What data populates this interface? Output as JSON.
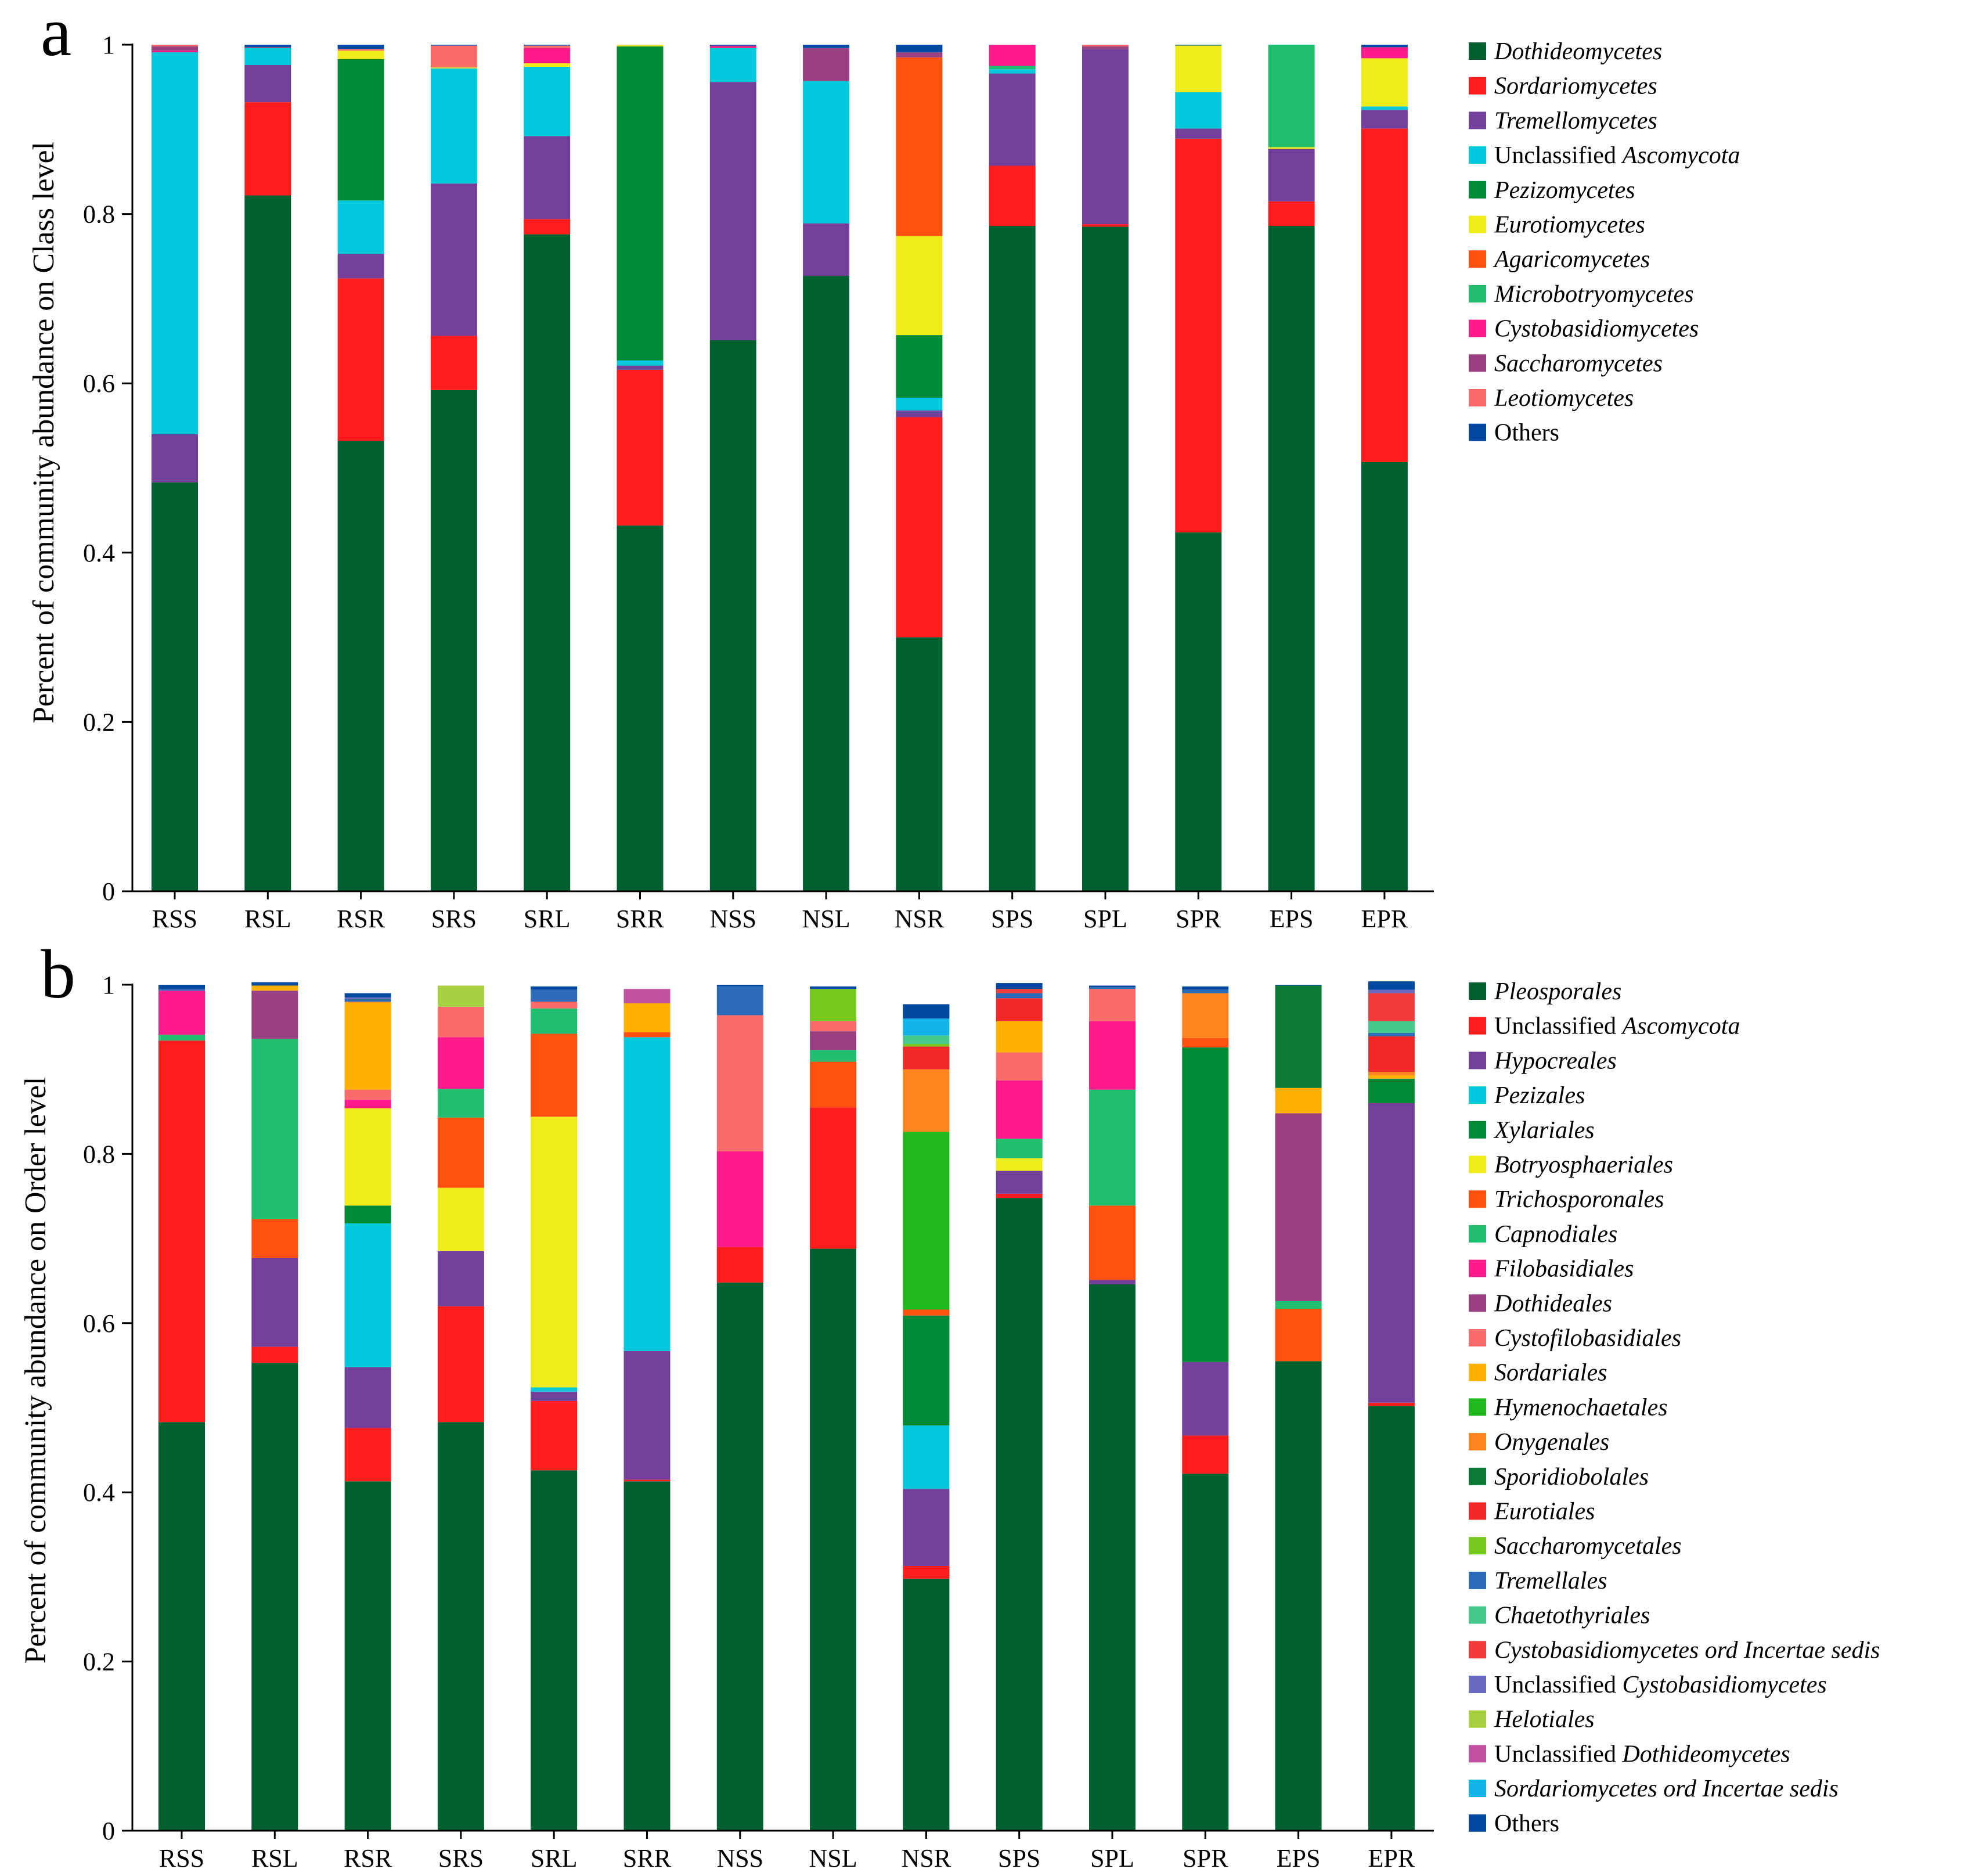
{
  "chart_data": [
    {
      "panel": "a",
      "type": "bar",
      "stacked": true,
      "ylabel": "Percent of community abundance on Class level",
      "ylim": [
        0,
        1
      ],
      "yticks": [
        "0",
        "0.2",
        "0.4",
        "0.6",
        "0.8",
        "1"
      ],
      "categories": [
        "RSS",
        "RSL",
        "RSR",
        "SRS",
        "SRL",
        "SRR",
        "NSS",
        "NSL",
        "NSR",
        "SPS",
        "SPL",
        "SPR",
        "EPS",
        "EPR"
      ],
      "legend_position": "right",
      "series": [
        {
          "name": "Dothideomycetes",
          "legend": [
            {
              "text": "Dothideomycetes",
              "italic": true
            }
          ],
          "color": "#006030",
          "values": [
            0.483,
            0.822,
            0.532,
            0.592,
            0.776,
            0.432,
            0.651,
            0.727,
            0.3,
            0.786,
            0.785,
            0.424,
            0.786,
            0.507
          ]
        },
        {
          "name": "Sordariomycetes",
          "legend": [
            {
              "text": "Sordariomycetes",
              "italic": true
            }
          ],
          "color": "#ff1c1c",
          "values": [
            0,
            0.11,
            0.192,
            0.064,
            0.018,
            0.184,
            0,
            0,
            0.26,
            0.071,
            0.003,
            0.465,
            0.029,
            0.394
          ]
        },
        {
          "name": "Tremellomycetes",
          "legend": [
            {
              "text": "Tremellomycetes",
              "italic": true
            }
          ],
          "color": "#72409a",
          "values": [
            0.057,
            0.044,
            0.029,
            0.18,
            0.098,
            0.005,
            0.305,
            0.062,
            0.008,
            0.109,
            0.207,
            0.012,
            0.062,
            0.022
          ]
        },
        {
          "name": "Unclassified Ascomycota",
          "legend": [
            {
              "text": "Unclassified ",
              "italic": false
            },
            {
              "text": "Ascomycota",
              "italic": true
            }
          ],
          "color": "#00c8dc",
          "values": [
            0.451,
            0.02,
            0.063,
            0.136,
            0.082,
            0.006,
            0.04,
            0.168,
            0.015,
            0.005,
            0,
            0.043,
            0,
            0.004
          ]
        },
        {
          "name": "Pezizomycetes",
          "legend": [
            {
              "text": "Pezizomycetes",
              "italic": true
            }
          ],
          "color": "#008a35",
          "values": [
            0,
            0,
            0.167,
            0,
            0,
            0.371,
            0,
            0,
            0.074,
            0,
            0,
            0,
            0,
            0
          ]
        },
        {
          "name": "Eurotiomycetes",
          "legend": [
            {
              "text": "Eurotiomycetes",
              "italic": true
            }
          ],
          "color": "#f0ec1c",
          "values": [
            0,
            0,
            0.01,
            0.001,
            0.004,
            0.002,
            0,
            0,
            0.117,
            0,
            0,
            0.055,
            0.002,
            0.057
          ]
        },
        {
          "name": "Agaricomycetes",
          "legend": [
            {
              "text": "Agaricomycetes",
              "italic": true
            }
          ],
          "color": "#ff5010",
          "values": [
            0,
            0,
            0,
            0,
            0,
            0,
            0,
            0,
            0.211,
            0,
            0,
            0,
            0,
            0
          ]
        },
        {
          "name": "Microbotryomycetes",
          "legend": [
            {
              "text": "Microbotryomycetes",
              "italic": true
            }
          ],
          "color": "#20be6e",
          "values": [
            0,
            0,
            0,
            0,
            0,
            0,
            0,
            0,
            0,
            0.004,
            0,
            0,
            0.121,
            0
          ]
        },
        {
          "name": "Cystobasidiomycetes",
          "legend": [
            {
              "text": "Cystobasidiomycetes",
              "italic": true
            }
          ],
          "color": "#ff1a8c",
          "values": [
            0.002,
            0,
            0,
            0,
            0.018,
            0,
            0.002,
            0,
            0,
            0.025,
            0,
            0,
            0,
            0.013
          ]
        },
        {
          "name": "Saccharomycetes",
          "legend": [
            {
              "text": "Saccharomycetes",
              "italic": true
            }
          ],
          "color": "#9a4080",
          "values": [
            0.005,
            0.001,
            0,
            0,
            0,
            0,
            0.001,
            0.039,
            0.006,
            0,
            0.003,
            0,
            0,
            0
          ]
        },
        {
          "name": "Leotiomycetes",
          "legend": [
            {
              "text": "Leotiomycetes",
              "italic": true
            }
          ],
          "color": "#fa6b6b",
          "values": [
            0.002,
            0,
            0.002,
            0.026,
            0.003,
            0,
            0,
            0,
            0,
            0,
            0.002,
            0,
            0,
            0
          ]
        },
        {
          "name": "Others",
          "legend": [
            {
              "text": "Others",
              "italic": false
            }
          ],
          "color": "#0048a0",
          "values": [
            0,
            0.003,
            0.005,
            0.001,
            0.001,
            0,
            0.001,
            0.004,
            0.009,
            0,
            0,
            0.001,
            0,
            0.003
          ]
        }
      ]
    },
    {
      "panel": "b",
      "type": "bar",
      "stacked": true,
      "ylabel": "Percent of community abundance on Order level",
      "ylim": [
        0,
        1
      ],
      "yticks": [
        "0",
        "0.2",
        "0.4",
        "0.6",
        "0.8",
        "1"
      ],
      "categories": [
        "RSS",
        "RSL",
        "RSR",
        "SRS",
        "SRL",
        "SRR",
        "NSS",
        "NSL",
        "NSR",
        "SPS",
        "SPL",
        "SPR",
        "EPS",
        "EPR"
      ],
      "legend_position": "right",
      "series": [
        {
          "name": "Pleosporales",
          "legend": [
            {
              "text": "Pleosporales",
              "italic": true
            }
          ],
          "color": "#006030",
          "values": [
            0.483,
            0.553,
            0.413,
            0.483,
            0.426,
            0.413,
            0.648,
            0.688,
            0.298,
            0.748,
            0.646,
            0.422,
            0.555,
            0.502
          ]
        },
        {
          "name": "Unclassified Ascomycota",
          "legend": [
            {
              "text": "Unclassified ",
              "italic": false
            },
            {
              "text": "Ascomycota",
              "italic": true
            }
          ],
          "color": "#ff1c1c",
          "values": [
            0.451,
            0.019,
            0.063,
            0.137,
            0.082,
            0.002,
            0.042,
            0.167,
            0.015,
            0.005,
            0,
            0.045,
            0,
            0.004
          ]
        },
        {
          "name": "Hypocreales",
          "legend": [
            {
              "text": "Hypocreales",
              "italic": true
            }
          ],
          "color": "#72409a",
          "values": [
            0,
            0.105,
            0.072,
            0.065,
            0.011,
            0.152,
            0,
            0,
            0.091,
            0.027,
            0.005,
            0.087,
            0,
            0.354
          ]
        },
        {
          "name": "Pezizales",
          "legend": [
            {
              "text": "Pezizales",
              "italic": true
            }
          ],
          "color": "#00c8dc",
          "values": [
            0,
            0,
            0.17,
            0,
            0.005,
            0.371,
            0,
            0,
            0.075,
            0,
            0,
            0,
            0,
            0
          ]
        },
        {
          "name": "Xylariales",
          "legend": [
            {
              "text": "Xylariales",
              "italic": true
            }
          ],
          "color": "#008a35",
          "values": [
            0,
            0,
            0.021,
            0,
            0,
            0,
            0,
            0,
            0.13,
            0,
            0,
            0.372,
            0,
            0.029
          ]
        },
        {
          "name": "Botryosphaeriales",
          "legend": [
            {
              "text": "Botryosphaeriales",
              "italic": true
            }
          ],
          "color": "#f0ec1c",
          "values": [
            0,
            0,
            0.115,
            0.075,
            0.32,
            0,
            0,
            0,
            0,
            0.015,
            0,
            0,
            0,
            0
          ]
        },
        {
          "name": "Trichosporonales",
          "legend": [
            {
              "text": "Trichosporonales",
              "italic": true
            }
          ],
          "color": "#ff5010",
          "values": [
            0,
            0.046,
            0,
            0.083,
            0.098,
            0.006,
            0,
            0.054,
            0.007,
            0,
            0.088,
            0.011,
            0.062,
            0
          ]
        },
        {
          "name": "Capnodiales",
          "legend": [
            {
              "text": "Capnodiales",
              "italic": true
            }
          ],
          "color": "#20be6e",
          "values": [
            0.007,
            0.213,
            0,
            0.034,
            0.03,
            0,
            0,
            0.014,
            0,
            0.023,
            0.137,
            0,
            0.009,
            0
          ]
        },
        {
          "name": "Filobasidiales",
          "legend": [
            {
              "text": "Filobasidiales",
              "italic": true
            }
          ],
          "color": "#ff1a8c",
          "values": [
            0.052,
            0,
            0.01,
            0.061,
            0,
            0,
            0.113,
            0,
            0,
            0.069,
            0.081,
            0,
            0,
            0
          ]
        },
        {
          "name": "Dothideales",
          "legend": [
            {
              "text": "Dothideales",
              "italic": true
            }
          ],
          "color": "#9a4080",
          "values": [
            0,
            0.057,
            0,
            0,
            0,
            0,
            0,
            0.022,
            0,
            0,
            0,
            0,
            0.222,
            0
          ]
        },
        {
          "name": "Cystofilobasidiales",
          "legend": [
            {
              "text": "Cystofilobasidiales",
              "italic": true
            }
          ],
          "color": "#fa6b6b",
          "values": [
            0,
            0,
            0.012,
            0.036,
            0.008,
            0,
            0.161,
            0.012,
            0,
            0.033,
            0.038,
            0,
            0,
            0
          ]
        },
        {
          "name": "Sordariales",
          "legend": [
            {
              "text": "Sordariales",
              "italic": true
            }
          ],
          "color": "#ffb000",
          "values": [
            0,
            0.006,
            0.103,
            0,
            0,
            0.034,
            0,
            0,
            0,
            0.037,
            0,
            0,
            0.03,
            0.004
          ]
        },
        {
          "name": "Hymenochaetales",
          "legend": [
            {
              "text": "Hymenochaetales",
              "italic": true
            }
          ],
          "color": "#20b81e",
          "values": [
            0,
            0,
            0,
            0,
            0,
            0,
            0,
            0,
            0.21,
            0,
            0,
            0,
            0,
            0
          ]
        },
        {
          "name": "Onygenales",
          "legend": [
            {
              "text": "Onygenales",
              "italic": true
            }
          ],
          "color": "#ff8420",
          "values": [
            0,
            0,
            0.001,
            0,
            0,
            0,
            0,
            0,
            0.074,
            0,
            0,
            0.053,
            0,
            0.004
          ]
        },
        {
          "name": "Sporidiobolales",
          "legend": [
            {
              "text": "Sporidiobolales",
              "italic": true
            }
          ],
          "color": "#0a7a35",
          "values": [
            0,
            0,
            0,
            0,
            0,
            0,
            0,
            0,
            0,
            0,
            0,
            0,
            0.121,
            0
          ]
        },
        {
          "name": "Eurotiales",
          "legend": [
            {
              "text": "Eurotiales",
              "italic": true
            }
          ],
          "color": "#f22828",
          "values": [
            0,
            0,
            0,
            0,
            0,
            0,
            0,
            0,
            0.027,
            0.027,
            0,
            0,
            0,
            0.042
          ]
        },
        {
          "name": "Saccharomycetales",
          "legend": [
            {
              "text": "Saccharomycetales",
              "italic": true
            }
          ],
          "color": "#74c81e",
          "values": [
            0,
            0,
            0,
            0,
            0,
            0,
            0,
            0.038,
            0.003,
            0,
            0,
            0,
            0,
            0
          ]
        },
        {
          "name": "Tremellales",
          "legend": [
            {
              "text": "Tremellales",
              "italic": true
            }
          ],
          "color": "#2a6ab8",
          "values": [
            0.002,
            0,
            0.003,
            0,
            0.014,
            0,
            0.034,
            0,
            0,
            0.006,
            0.002,
            0.004,
            0,
            0.004
          ]
        },
        {
          "name": "Chaetothyriales",
          "legend": [
            {
              "text": "Chaetothyriales",
              "italic": true
            }
          ],
          "color": "#46c88c",
          "values": [
            0,
            0,
            0,
            0,
            0,
            0,
            0,
            0,
            0.01,
            0,
            0,
            0,
            0,
            0.014
          ]
        },
        {
          "name": "Cystobasidiomycetes ord Incertae sedis",
          "legend": [
            {
              "text": "Cystobasidiomycetes ord Incertae sedis",
              "italic": true
            }
          ],
          "color": "#f23c3c",
          "values": [
            0,
            0,
            0,
            0,
            0,
            0,
            0,
            0,
            0,
            0.005,
            0,
            0,
            0,
            0.033
          ]
        },
        {
          "name": "Unclassified Cystobasidiomycetes",
          "legend": [
            {
              "text": "Unclassified ",
              "italic": false
            },
            {
              "text": "Cystobasidiomycetes",
              "italic": true
            }
          ],
          "color": "#6a6ac0",
          "values": [
            0,
            0,
            0.002,
            0,
            0,
            0,
            0,
            0,
            0,
            0,
            0,
            0,
            0,
            0.004
          ]
        },
        {
          "name": "Helotiales",
          "legend": [
            {
              "text": "Helotiales",
              "italic": true
            }
          ],
          "color": "#a8d040",
          "values": [
            0,
            0,
            0,
            0.025,
            0,
            0,
            0,
            0,
            0,
            0,
            0,
            0,
            0,
            0
          ]
        },
        {
          "name": "Unclassified Dothideomycetes",
          "legend": [
            {
              "text": "Unclassified ",
              "italic": false
            },
            {
              "text": "Dothideomycetes",
              "italic": true
            }
          ],
          "color": "#c050a0",
          "values": [
            0,
            0,
            0,
            0,
            0,
            0.017,
            0,
            0,
            0,
            0,
            0,
            0,
            0,
            0
          ]
        },
        {
          "name": "Sordariomycetes ord Incertae sedis",
          "legend": [
            {
              "text": "Sordariomycetes ord Incertae sedis",
              "italic": true
            }
          ],
          "color": "#10b4e6",
          "values": [
            0,
            0,
            0,
            0,
            0,
            0,
            0,
            0,
            0.02,
            0,
            0,
            0,
            0,
            0
          ]
        },
        {
          "name": "Others",
          "legend": [
            {
              "text": "Others",
              "italic": false
            }
          ],
          "color": "#0048a0",
          "values": [
            0.005,
            0.004,
            0.005,
            0,
            0.004,
            0,
            0.002,
            0.003,
            0.017,
            0.007,
            0.002,
            0.004,
            0.001,
            0.01
          ]
        }
      ]
    }
  ]
}
